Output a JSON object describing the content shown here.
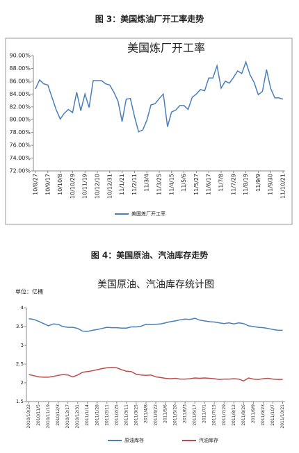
{
  "captions": [
    "图 3：美国炼油厂开工率走势",
    "图 4：美国原油、汽油库存走势"
  ],
  "chart_data": [
    {
      "type": "line",
      "title": "美国炼厂开工率",
      "categories": [
        "10/8/27",
        null,
        null,
        "10/9/17",
        null,
        null,
        "10/10/8",
        null,
        null,
        "10/10/29",
        null,
        null,
        "10/11/19",
        null,
        null,
        "10/12/10",
        null,
        null,
        "10/12/31",
        null,
        null,
        "11/1/21",
        null,
        null,
        "11/2/11",
        null,
        null,
        "11/3/4",
        null,
        null,
        "11/3/25",
        null,
        null,
        "11/4/15",
        null,
        null,
        "11/5/6",
        null,
        null,
        "11/5/27",
        null,
        null,
        "11/6/17",
        null,
        null,
        "11/7/8",
        null,
        null,
        "11/7/29",
        null,
        null,
        "11/8/19",
        null,
        null,
        "11/9/9",
        null,
        null,
        "11/9/30",
        null,
        null,
        "11/10/21"
      ],
      "series": [
        {
          "name": "美国炼厂开工率",
          "color": "#4a7ebb",
          "values": [
            84.8,
            86.2,
            85.6,
            85.4,
            83.5,
            81.6,
            80.1,
            81.0,
            81.6,
            81.1,
            84.3,
            81.4,
            84.0,
            81.9,
            86.1,
            86.1,
            86.1,
            85.6,
            85.4,
            84.3,
            82.9,
            79.7,
            83.2,
            83.3,
            80.5,
            78.1,
            78.4,
            79.9,
            82.3,
            82.5,
            83.3,
            84.0,
            78.9,
            81.2,
            81.5,
            82.2,
            82.2,
            81.6,
            83.5,
            84.0,
            84.7,
            84.5,
            86.5,
            86.5,
            88.4,
            84.9,
            86.0,
            85.7,
            86.6,
            87.6,
            87.2,
            89.0,
            87.0,
            85.8,
            83.9,
            84.4,
            87.8,
            84.9,
            83.4,
            83.4,
            83.2
          ]
        }
      ],
      "ylim": [
        72,
        90
      ],
      "yticks": [
        {
          "value": 72,
          "label": "72.00%"
        },
        {
          "value": 74,
          "label": "74.00%"
        },
        {
          "value": 76,
          "label": "76.00%"
        },
        {
          "value": 78,
          "label": "78.00%"
        },
        {
          "value": 80,
          "label": "80.00%"
        },
        {
          "value": 82,
          "label": "82.00%"
        },
        {
          "value": 84,
          "label": "84.00%"
        },
        {
          "value": 86,
          "label": "86.00%"
        },
        {
          "value": 88,
          "label": "88.00%"
        },
        {
          "value": 90,
          "label": "90.00%"
        }
      ],
      "grid": false,
      "legend": "bottom"
    },
    {
      "type": "line",
      "title": "美国原油、汽油库存统计图",
      "unit": "单位：亿桶",
      "categories": [
        "2010/10/22",
        null,
        "2010/11/5",
        null,
        "2010/11/19",
        null,
        "2010/12/3",
        null,
        "2010/12/17",
        null,
        "2010/12/31",
        null,
        "2011/1/14",
        null,
        "2011/1/28",
        null,
        "2011/2/11",
        null,
        "2011/2/25",
        null,
        "2011/3/11",
        null,
        "2011/3/25",
        null,
        "2011/4/8",
        null,
        "2011/4/22",
        null,
        "2011/5/6",
        null,
        "2011/5/20",
        null,
        "2011/6/3",
        null,
        "2011/6/17",
        null,
        "2011/7/1",
        null,
        "2011/7/15",
        null,
        "2011/7/29",
        null,
        "2011/8/12",
        null,
        "2011/8/26",
        null,
        "2011/9/9",
        null,
        "2011/9/23",
        null,
        "2011/10/7",
        null,
        "2011/10/21"
      ],
      "series": [
        {
          "name": "原油库存",
          "color": "#4a7ebb",
          "values": [
            3.71,
            3.69,
            3.64,
            3.58,
            3.52,
            3.57,
            3.56,
            3.5,
            3.48,
            3.48,
            3.45,
            3.38,
            3.37,
            3.4,
            3.42,
            3.45,
            3.48,
            3.47,
            3.47,
            3.46,
            3.46,
            3.49,
            3.49,
            3.51,
            3.56,
            3.55,
            3.56,
            3.57,
            3.6,
            3.63,
            3.65,
            3.68,
            3.7,
            3.69,
            3.72,
            3.67,
            3.65,
            3.63,
            3.62,
            3.6,
            3.58,
            3.6,
            3.57,
            3.6,
            3.58,
            3.52,
            3.5,
            3.48,
            3.47,
            3.45,
            3.42,
            3.4,
            3.4
          ]
        },
        {
          "name": "汽油库存",
          "color": "#be4b48",
          "values": [
            2.22,
            2.19,
            2.16,
            2.15,
            2.15,
            2.17,
            2.2,
            2.22,
            2.21,
            2.16,
            2.21,
            2.28,
            2.3,
            2.32,
            2.35,
            2.38,
            2.4,
            2.41,
            2.4,
            2.35,
            2.31,
            2.3,
            2.23,
            2.21,
            2.2,
            2.21,
            2.16,
            2.14,
            2.12,
            2.11,
            2.12,
            2.1,
            2.1,
            2.11,
            2.13,
            2.12,
            2.13,
            2.12,
            2.11,
            2.09,
            2.1,
            2.1,
            2.11,
            2.1,
            2.05,
            2.13,
            2.1,
            2.09,
            2.11,
            2.12,
            2.1,
            2.09,
            2.09
          ]
        }
      ],
      "ylim": [
        1.5,
        4
      ],
      "yticks": [
        1.5,
        2,
        2.5,
        3,
        3.5,
        4
      ],
      "grid": false,
      "legend": "bottom"
    }
  ]
}
